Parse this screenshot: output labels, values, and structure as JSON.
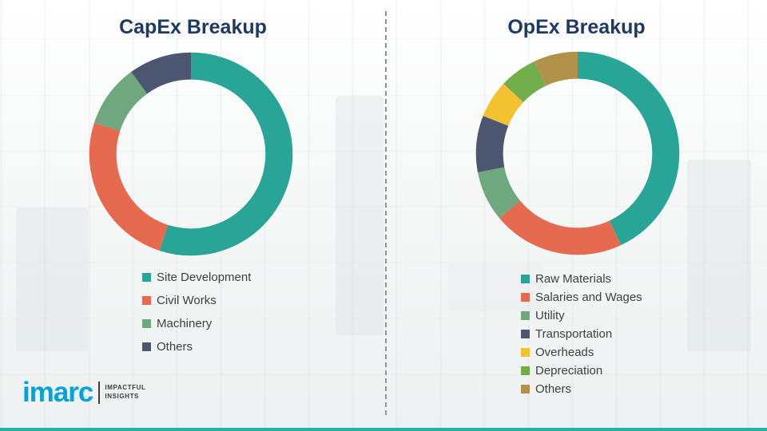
{
  "titles": {
    "left": "CapEx Breakup",
    "right": "OpEx Breakup"
  },
  "chart_data": [
    {
      "type": "pie",
      "subtype": "donut",
      "title": "CapEx Breakup",
      "legend_position": "bottom",
      "segments": [
        {
          "label": "Site Development",
          "value": 55,
          "color": "#29A598"
        },
        {
          "label": "Civil Works",
          "value": 25,
          "color": "#E56A50"
        },
        {
          "label": "Machinery",
          "value": 10,
          "color": "#6FA87E"
        },
        {
          "label": "Others",
          "value": 10,
          "color": "#4D5670"
        }
      ]
    },
    {
      "type": "pie",
      "subtype": "donut",
      "title": "OpEx Breakup",
      "legend_position": "bottom",
      "segments": [
        {
          "label": "Raw Materials",
          "value": 43,
          "color": "#29A598"
        },
        {
          "label": "Salaries and Wages",
          "value": 21,
          "color": "#E56A50"
        },
        {
          "label": "Utility",
          "value": 8,
          "color": "#6FA87E"
        },
        {
          "label": "Transportation",
          "value": 9,
          "color": "#4D5670"
        },
        {
          "label": "Overheads",
          "value": 6,
          "color": "#F2C230"
        },
        {
          "label": "Depreciation",
          "value": 6,
          "color": "#72AD4B"
        },
        {
          "label": "Others",
          "value": 7,
          "color": "#B2924B"
        }
      ]
    }
  ],
  "logo": {
    "name": "imarc",
    "tagline_line1": "IMPACTFUL",
    "tagline_line2": "INSIGHTS"
  },
  "colors": {
    "title_navy": "#1F3864",
    "legend_text": "#404040",
    "divider_gray": "#8d9398",
    "logo_blue": "#00A3DB",
    "bottom_strip_teal": "#2BAFA4"
  }
}
